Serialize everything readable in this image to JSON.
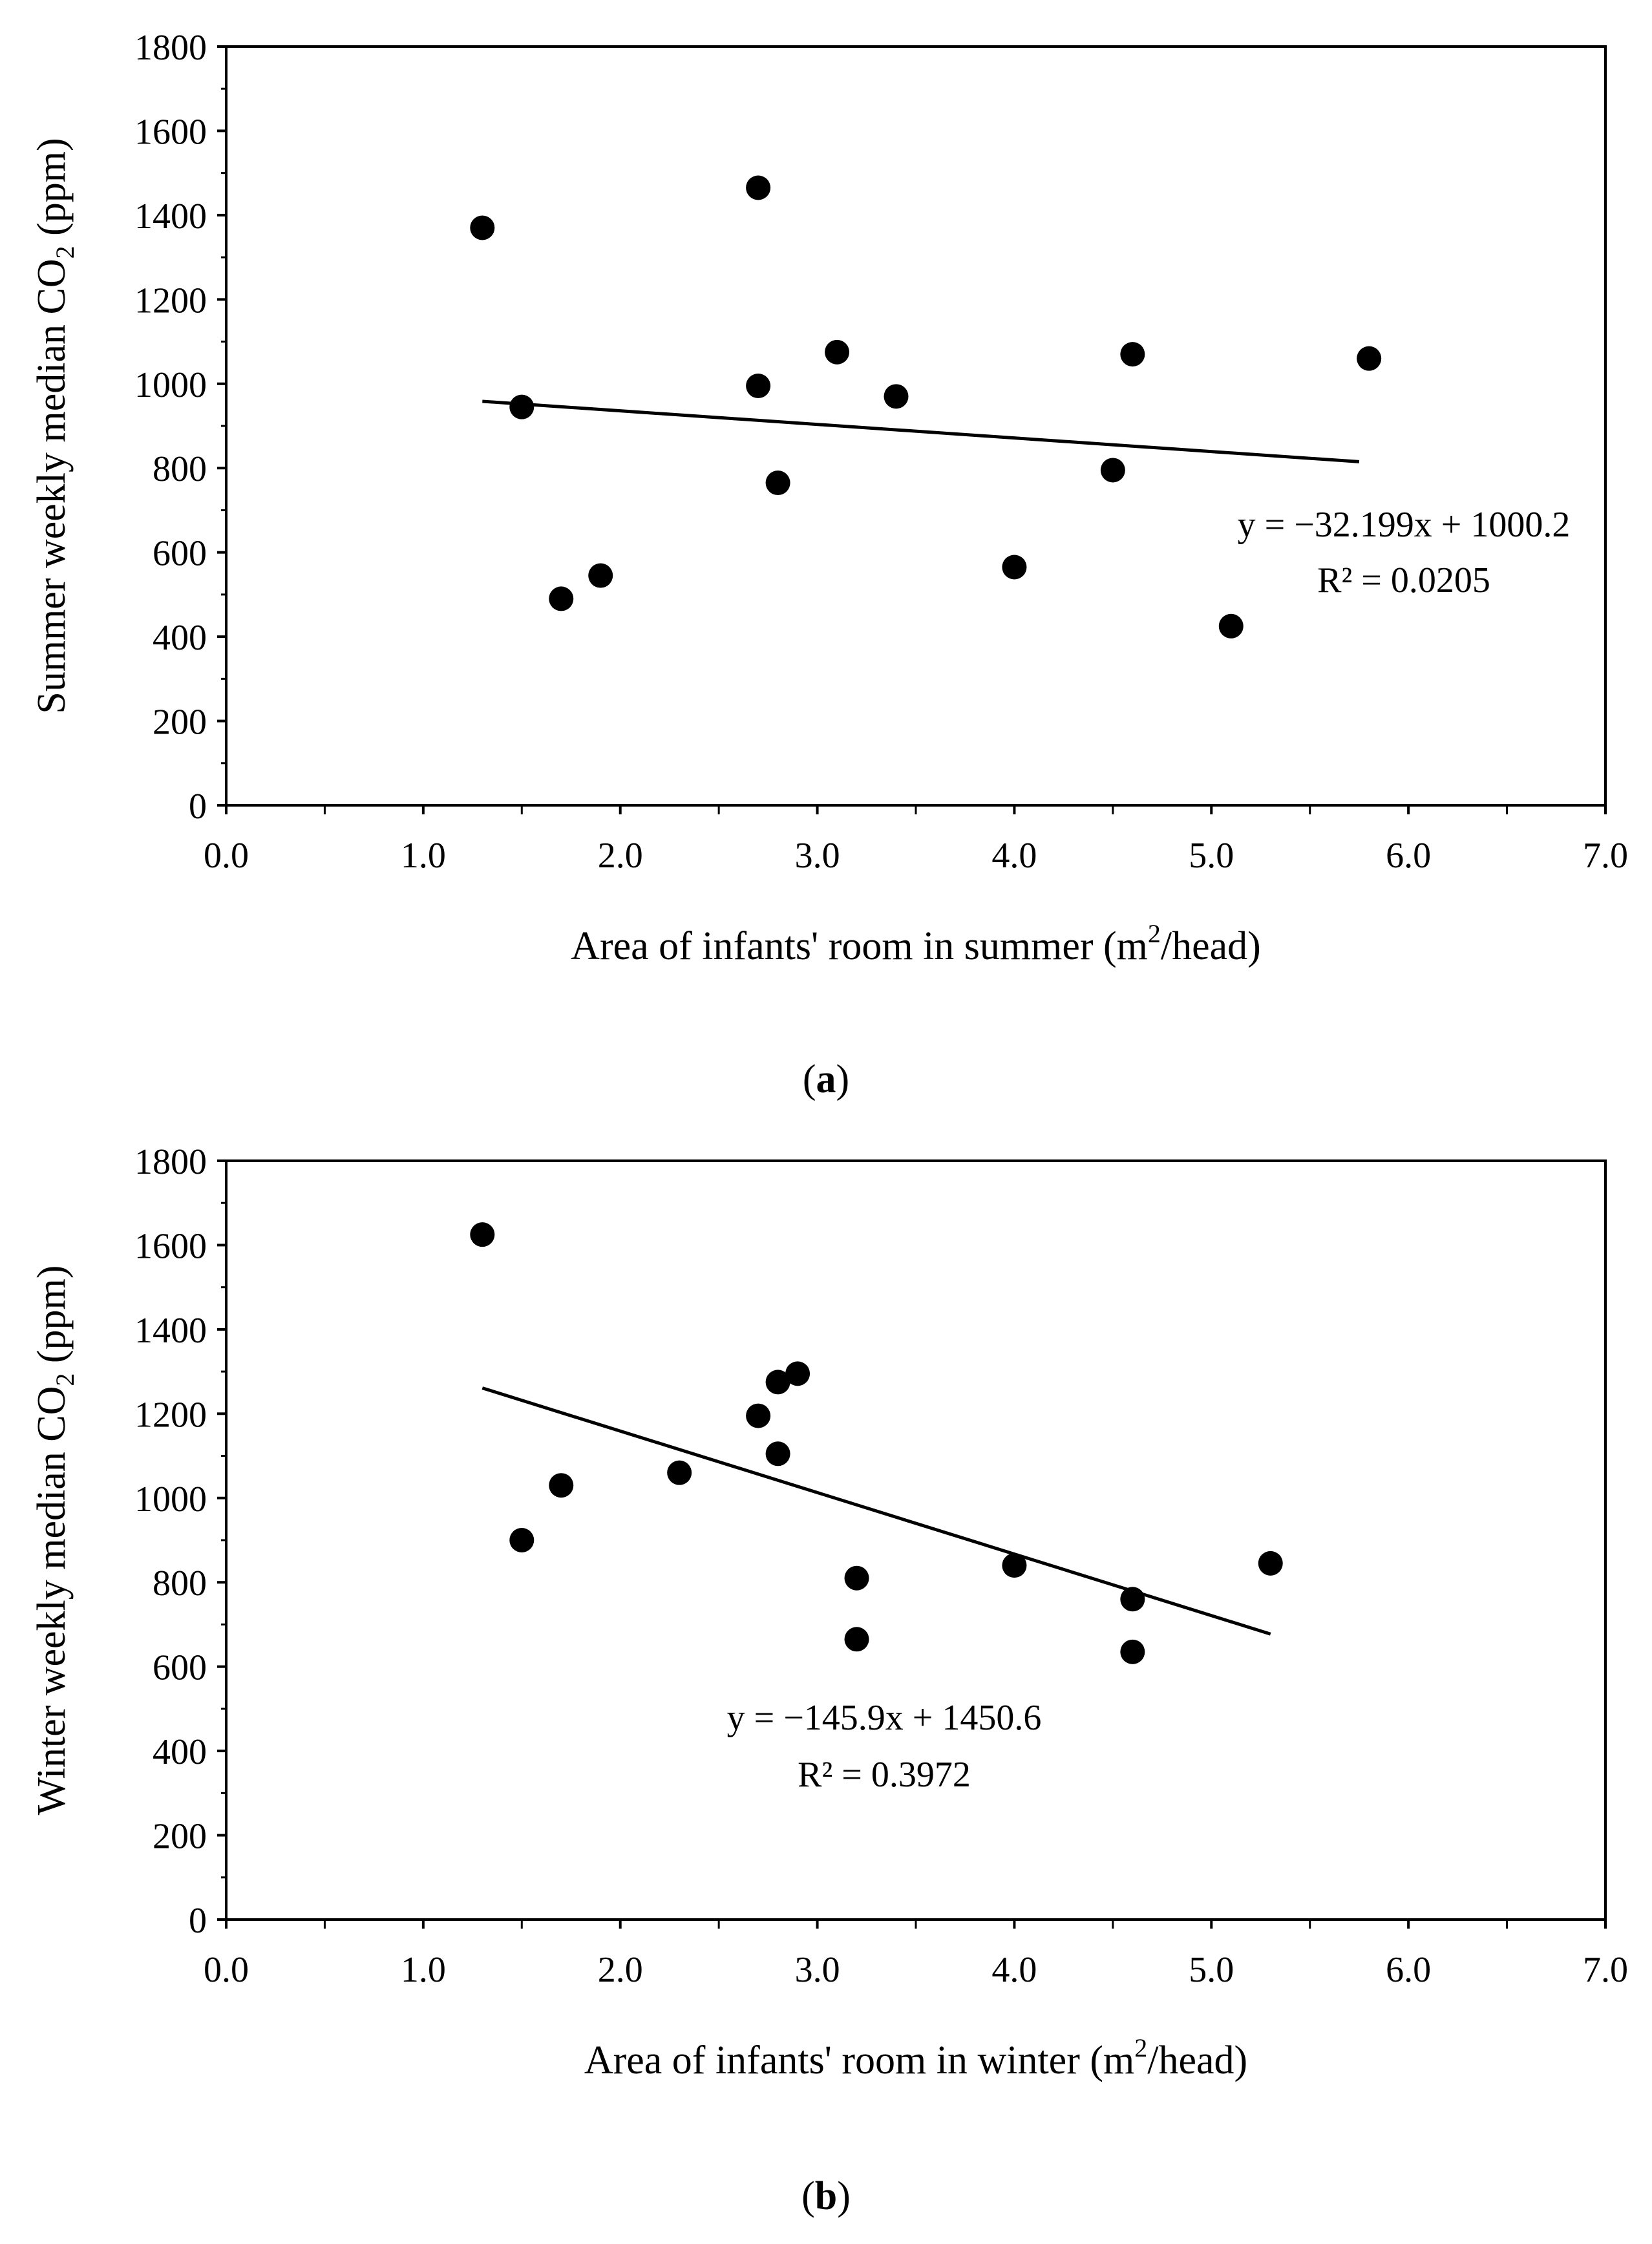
{
  "chart_data": [
    {
      "type": "scatter",
      "panel_label": "a",
      "xlabel_prefix": "Area of infants' room in summer (m",
      "xlabel_sup": "2",
      "xlabel_suffix": "/head)",
      "ylabel_prefix": "Summer weekly median CO",
      "ylabel_sub": "2",
      "ylabel_suffix": " (ppm)",
      "xlim": [
        0,
        7
      ],
      "ylim": [
        0,
        1800
      ],
      "x_ticks": [
        "0.0",
        "1.0",
        "2.0",
        "3.0",
        "4.0",
        "5.0",
        "6.0",
        "7.0"
      ],
      "y_ticks": [
        "0",
        "200",
        "400",
        "600",
        "800",
        "1000",
        "1200",
        "1400",
        "1600",
        "1800"
      ],
      "points": [
        {
          "x": 1.3,
          "y": 1370
        },
        {
          "x": 1.5,
          "y": 945
        },
        {
          "x": 1.7,
          "y": 490
        },
        {
          "x": 1.9,
          "y": 545
        },
        {
          "x": 2.7,
          "y": 1465
        },
        {
          "x": 2.7,
          "y": 995
        },
        {
          "x": 2.8,
          "y": 765
        },
        {
          "x": 3.1,
          "y": 1075
        },
        {
          "x": 3.4,
          "y": 970
        },
        {
          "x": 4.0,
          "y": 565
        },
        {
          "x": 4.5,
          "y": 795
        },
        {
          "x": 4.6,
          "y": 1070
        },
        {
          "x": 5.1,
          "y": 425
        },
        {
          "x": 5.8,
          "y": 1060
        }
      ],
      "trendline": {
        "slope": -32.199,
        "intercept": 1000.2,
        "x_start": 1.3,
        "x_end": 5.75
      },
      "equation": "y = −32.199x + 1000.2",
      "r2_label": "R² = 0.0205"
    },
    {
      "type": "scatter",
      "panel_label": "b",
      "xlabel_prefix": "Area of infants' room in winter (m",
      "xlabel_sup": "2",
      "xlabel_suffix": "/head)",
      "ylabel_prefix": "Winter weekly median CO",
      "ylabel_sub": "2",
      "ylabel_suffix": " (ppm)",
      "xlim": [
        0,
        7
      ],
      "ylim": [
        0,
        1800
      ],
      "x_ticks": [
        "0.0",
        "1.0",
        "2.0",
        "3.0",
        "4.0",
        "5.0",
        "6.0",
        "7.0"
      ],
      "y_ticks": [
        "0",
        "200",
        "400",
        "600",
        "800",
        "1000",
        "1200",
        "1400",
        "1600",
        "1800"
      ],
      "points": [
        {
          "x": 1.3,
          "y": 1625
        },
        {
          "x": 1.5,
          "y": 900
        },
        {
          "x": 1.7,
          "y": 1030
        },
        {
          "x": 2.3,
          "y": 1060
        },
        {
          "x": 2.7,
          "y": 1195
        },
        {
          "x": 2.8,
          "y": 1275
        },
        {
          "x": 2.9,
          "y": 1295
        },
        {
          "x": 2.8,
          "y": 1105
        },
        {
          "x": 3.2,
          "y": 810
        },
        {
          "x": 3.2,
          "y": 665
        },
        {
          "x": 4.0,
          "y": 840
        },
        {
          "x": 4.6,
          "y": 760
        },
        {
          "x": 4.6,
          "y": 635
        },
        {
          "x": 5.3,
          "y": 845
        }
      ],
      "trendline": {
        "slope": -145.9,
        "intercept": 1450.6,
        "x_start": 1.3,
        "x_end": 5.3
      },
      "equation": "y = −145.9x + 1450.6",
      "r2_label": "R² = 0.3972"
    }
  ]
}
